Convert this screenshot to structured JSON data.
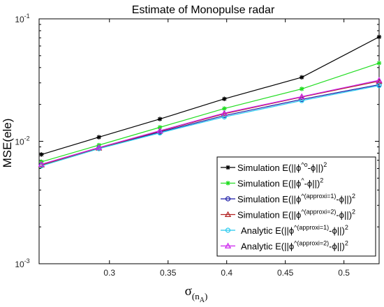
{
  "chart_data": {
    "type": "line",
    "title": "Estimate of Monopulse radar",
    "xlabel": {
      "main": "σ",
      "sub": "(n",
      "subsub": "A",
      "close": ")"
    },
    "ylabel": "MSE(ele)",
    "xlim": [
      0.24,
      0.53
    ],
    "ylim": [
      0.001,
      0.1
    ],
    "yscale": "log",
    "x_ticks": [
      0.3,
      0.35,
      0.4,
      0.45,
      0.5
    ],
    "x_tick_labels": [
      "0.3",
      "0.35",
      "0.4",
      "0.45",
      "0.5"
    ],
    "y_ticks": [
      {
        "value": 0.001,
        "mant": "10",
        "exp": "-3"
      },
      {
        "value": 0.01,
        "mant": "10",
        "exp": "-2"
      },
      {
        "value": 0.1,
        "mant": "10",
        "exp": "-1"
      }
    ],
    "grid": false,
    "legend_position": "bottom-right",
    "x": [
      0.242,
      0.291,
      0.343,
      0.398,
      0.464,
      0.53
    ],
    "series": [
      {
        "label": {
          "pre": "Simulation E(||ϕ",
          "sup": "^o",
          "post": "-ϕ||)",
          "exp": "2"
        },
        "color": "#000000",
        "marker": "asterisk",
        "values": [
          0.0078,
          0.0108,
          0.0152,
          0.0222,
          0.0333,
          0.0712
        ]
      },
      {
        "label": {
          "pre": "Simulation E(||ϕ",
          "sup": "^",
          "post": "-ϕ||)",
          "exp": "2"
        },
        "color": "#22dd22",
        "marker": "asterisk",
        "values": [
          0.0068,
          0.0093,
          0.013,
          0.0185,
          0.0268,
          0.0435
        ]
      },
      {
        "label": {
          "pre": "Simulation E(||ϕ",
          "sup": "^(approxi=1)",
          "post": "-ϕ||)",
          "exp": "2"
        },
        "color": "#1a1aa6",
        "marker": "circle",
        "values": [
          0.0064,
          0.0088,
          0.0119,
          0.0162,
          0.022,
          0.029
        ]
      },
      {
        "label": {
          "pre": "Simulation E(||ϕ",
          "sup": "^(approxi=2)",
          "post": "-ϕ||)",
          "exp": "2"
        },
        "color": "#b22222",
        "marker": "triangle",
        "values": [
          0.0064,
          0.0088,
          0.0121,
          0.0168,
          0.023,
          0.031
        ]
      },
      {
        "label": {
          "pre": "Analytic E(||ϕ",
          "sup": "^(approxi=1)",
          "post": "-ϕ||)",
          "exp": "2"
        },
        "color": "#22c8ee",
        "marker": "circle",
        "values": [
          0.0063,
          0.0087,
          0.0117,
          0.0158,
          0.0215,
          0.0285
        ]
      },
      {
        "label": {
          "pre": "Analytic E(||ϕ",
          "sup": "^(approxi=2)",
          "post": "-ϕ||)",
          "exp": "2"
        },
        "color": "#cc22ee",
        "marker": "triangle",
        "values": [
          0.0065,
          0.0089,
          0.0122,
          0.017,
          0.0232,
          0.0315
        ]
      }
    ]
  }
}
